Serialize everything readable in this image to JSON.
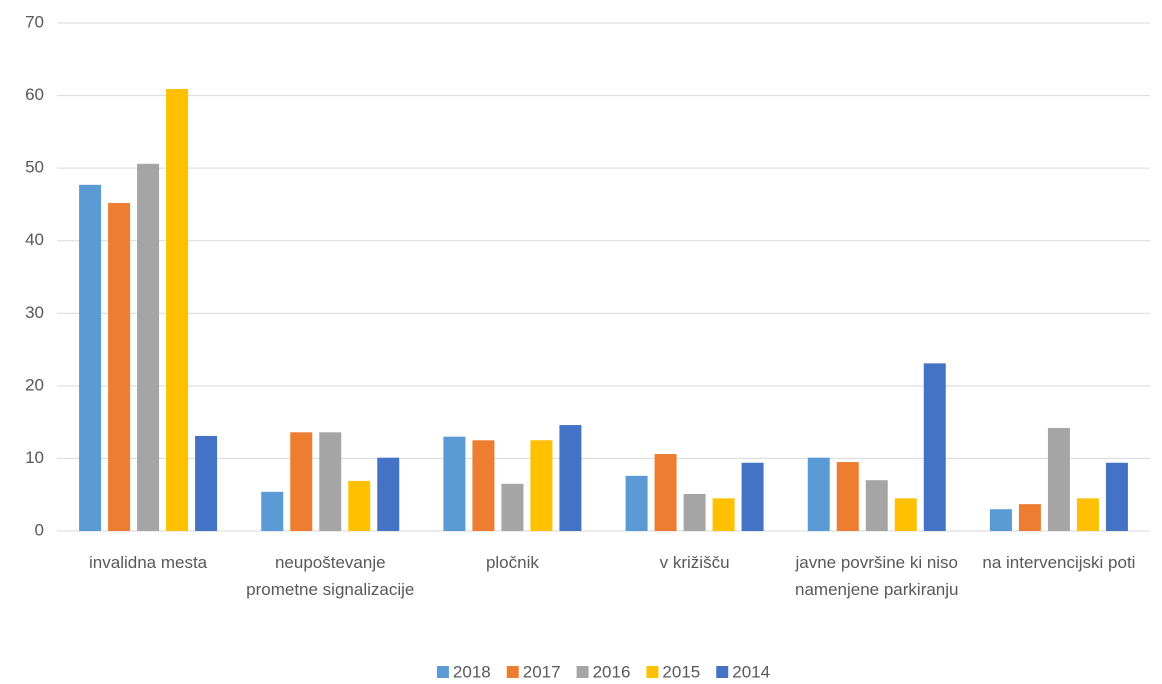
{
  "chart_data": {
    "type": "bar",
    "categories": [
      "invalidna mesta",
      "neupoštevanje prometne signalizacije",
      "pločnik",
      "v križišču",
      "javne površine ki niso namenjene parkiranju",
      "na intervencijski poti"
    ],
    "series": [
      {
        "name": "2018",
        "color": "#5b9bd5",
        "values": [
          47.7,
          5.4,
          13.0,
          7.6,
          10.1,
          3.0
        ]
      },
      {
        "name": "2017",
        "color": "#ed7d31",
        "values": [
          45.2,
          13.6,
          12.5,
          10.6,
          9.5,
          3.7
        ]
      },
      {
        "name": "2016",
        "color": "#a5a5a5",
        "values": [
          50.6,
          13.6,
          6.5,
          5.1,
          7.0,
          14.2
        ]
      },
      {
        "name": "2015",
        "color": "#ffc000",
        "values": [
          60.9,
          6.9,
          12.5,
          4.5,
          4.5,
          4.5
        ]
      },
      {
        "name": "2014",
        "color": "#4472c4",
        "values": [
          13.1,
          10.1,
          14.6,
          9.4,
          23.1,
          9.4
        ]
      }
    ],
    "ylim": [
      0,
      70
    ],
    "yticks": [
      0,
      10,
      20,
      30,
      40,
      50,
      60,
      70
    ],
    "grid": true,
    "legend": "bottom"
  }
}
